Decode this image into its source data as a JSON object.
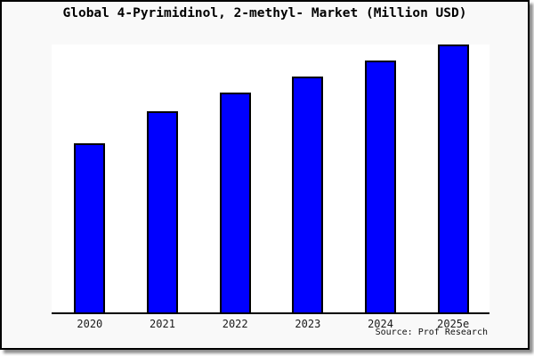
{
  "header": {
    "title": "Global 4-Pyrimidinol, 2-methyl- Market (Million USD)"
  },
  "footer": {
    "source": "Source: Prof Research"
  },
  "colors": {
    "bar_fill": "#0000ff",
    "bar_border": "#000000",
    "axis": "#000000",
    "plot_background": "#ffffff",
    "page_background": "#f9f9f9",
    "frame_border": "#000000"
  },
  "chart_data": {
    "type": "bar",
    "title": "Global 4-Pyrimidinol, 2-methyl- Market (Million USD)",
    "categories": [
      "2020",
      "2021",
      "2022",
      "2023",
      "2024",
      "2025e"
    ],
    "values": [
      63,
      75,
      82,
      88,
      94,
      100
    ],
    "xlabel": "",
    "ylabel": "",
    "ylim": [
      0,
      100
    ],
    "y_axis_labels_visible": false,
    "grid": false,
    "legend": false,
    "bar_color": "#0000ff"
  }
}
